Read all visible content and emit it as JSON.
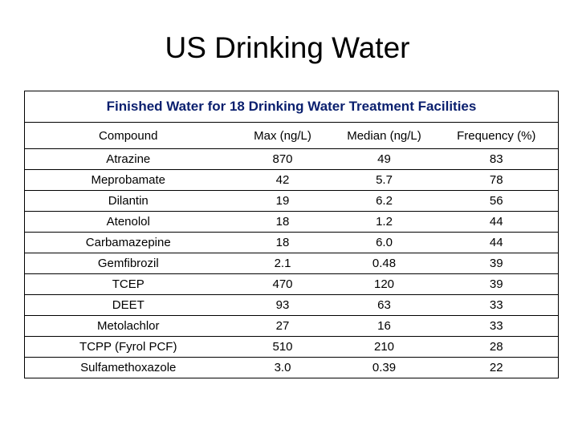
{
  "slide": {
    "title": "US Drinking Water"
  },
  "table": {
    "caption": "Finished Water for 18 Drinking Water Treatment Facilities",
    "columns": [
      "Compound",
      "Max (ng/L)",
      "Median (ng/L)",
      "Frequency (%)"
    ],
    "rows": [
      [
        "Atrazine",
        "870",
        "49",
        "83"
      ],
      [
        "Meprobamate",
        "42",
        "5.7",
        "78"
      ],
      [
        "Dilantin",
        "19",
        "6.2",
        "56"
      ],
      [
        "Atenolol",
        "18",
        "1.2",
        "44"
      ],
      [
        "Carbamazepine",
        "18",
        "6.0",
        "44"
      ],
      [
        "Gemfibrozil",
        "2.1",
        "0.48",
        "39"
      ],
      [
        "TCEP",
        "470",
        "120",
        "39"
      ],
      [
        "DEET",
        "93",
        "63",
        "33"
      ],
      [
        "Metolachlor",
        "27",
        "16",
        "33"
      ],
      [
        "TCPP (Fyrol PCF)",
        "510",
        "210",
        "28"
      ],
      [
        "Sulfamethoxazole",
        "3.0",
        "0.39",
        "22"
      ]
    ]
  },
  "colors": {
    "caption_text": "#0a1f6e",
    "border": "#000000",
    "background": "#ffffff"
  }
}
